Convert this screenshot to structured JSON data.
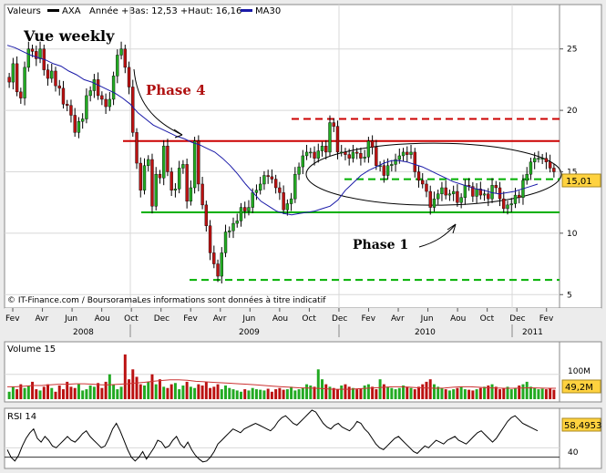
{
  "header": {
    "series_label": "Valeurs",
    "ticker": "AXA",
    "range_text": "Année +Bas: 12,53 +Haut: 16,16",
    "ma_label": "MA30"
  },
  "annotations": {
    "title": "Vue weekly",
    "phase4": "Phase 4",
    "phase1": "Phase 1",
    "copyright": "© IT-Finance.com / BoursoramaLes informations sont données à titre indicatif"
  },
  "price_badge": "15,01",
  "volume_panel": {
    "title": "Volume 15",
    "tick_100m": "100M",
    "badge": "49,2M"
  },
  "rsi_panel": {
    "title": "RSI 14",
    "tick_40": "40",
    "badge": "58,4953"
  },
  "x_axis": {
    "months": [
      "Fev",
      "Avr",
      "Jun",
      "Aou",
      "Oct",
      "Dec",
      "Fev",
      "Avr",
      "Jun",
      "Aou",
      "Oct",
      "Dec",
      "Fev",
      "Avr",
      "Jun",
      "Aou",
      "Oct",
      "Dec",
      "Fev"
    ],
    "years": [
      "2008",
      "2009",
      "2010",
      "2011"
    ]
  },
  "chart_data": [
    {
      "type": "candlestick",
      "title": "AXA",
      "y_ticks": [
        "25",
        "20",
        "15",
        "10",
        "5"
      ],
      "ylim": [
        4.5,
        27.5
      ],
      "series": [
        {
          "name": "AXA",
          "values": [
            22.3,
            23.8,
            21.5,
            21.0,
            23.5,
            25.0,
            24.8,
            24.2,
            25.0,
            23.3,
            22.6,
            23.2,
            22.0,
            21.8,
            20.5,
            20.4,
            19.6,
            18.2,
            19.1,
            19.3,
            21.2,
            21.6,
            22.5,
            21.2,
            20.9,
            20.3,
            20.9,
            22.8,
            24.5,
            25.0,
            23.5,
            21.9,
            18.2,
            15.7,
            13.5,
            15.5,
            16.0,
            12.2,
            14.8,
            14.5,
            17.1,
            15.0,
            13.5,
            13.6,
            15.3,
            15.6,
            12.6,
            13.7,
            17.5,
            14.0,
            12.3,
            10.6,
            8.4,
            7.5,
            6.5,
            8.4,
            10.1,
            10.2,
            10.8,
            11.0,
            12.1,
            11.8,
            12.1,
            13.3,
            13.5,
            14.0,
            14.7,
            14.6,
            14.4,
            13.7,
            13.3,
            11.9,
            12.4,
            12.8,
            14.8,
            15.4,
            16.3,
            16.6,
            16.6,
            16.1,
            16.7,
            17.1,
            16.6,
            19.0,
            18.7,
            16.6,
            16.6,
            16.4,
            16.1,
            16.6,
            16.5,
            16.1,
            16.2,
            17.5,
            17.0,
            15.5,
            15.5,
            14.7,
            15.5,
            15.6,
            16.0,
            16.3,
            16.6,
            16.4,
            16.6,
            15.0,
            14.3,
            14.0,
            13.4,
            12.1,
            12.8,
            13.2,
            13.7,
            13.1,
            13.2,
            13.4,
            12.5,
            12.9,
            13.9,
            13.8,
            13.0,
            13.6,
            13.1,
            13.2,
            12.8,
            13.9,
            13.7,
            12.8,
            12.0,
            12.3,
            12.4,
            13.1,
            12.9,
            14.3,
            14.8,
            15.8,
            16.1,
            16.1,
            16.1,
            15.8,
            15.3,
            15.0
          ]
        },
        {
          "name": "MA30",
          "values": [
            25.3,
            25.1,
            24.8,
            24.5,
            24.3,
            24.1,
            23.8,
            23.6,
            23.2,
            22.9,
            22.5,
            22.3,
            22.0,
            21.7,
            21.4,
            21.0,
            20.5,
            19.8,
            19.3,
            18.8,
            18.5,
            18.2,
            17.9,
            17.7,
            17.4,
            17.2,
            16.9,
            16.6,
            16.1,
            15.5,
            14.8,
            14.0,
            13.3,
            12.6,
            12.2,
            11.8,
            11.6,
            11.5,
            11.6,
            11.7,
            11.8,
            12.0,
            12.2,
            12.7,
            13.5,
            14.1,
            14.7,
            15.1,
            15.4,
            15.7,
            15.9,
            15.9,
            15.8,
            15.6,
            15.4,
            15.1,
            14.8,
            14.5,
            14.2,
            14.0,
            13.8,
            13.6,
            13.5,
            13.3,
            13.2,
            13.3,
            13.4,
            13.6,
            13.8,
            14.0
          ]
        }
      ],
      "annotations": [
        {
          "label": "resistance",
          "value": 17.5,
          "color": "#c00000"
        },
        {
          "label": "support",
          "value": 11.7,
          "color": "#00b000"
        },
        {
          "label": "upper dashed",
          "value": 19.3,
          "color": "#c00000"
        },
        {
          "label": "mid dashed",
          "value": 14.4,
          "color": "#00b000"
        },
        {
          "label": "low dashed",
          "value": 6.2,
          "color": "#00b000"
        }
      ]
    },
    {
      "type": "bar",
      "title": "Volume 15",
      "unit": "M",
      "ylim": [
        0,
        220
      ],
      "values": [
        30,
        50,
        40,
        60,
        45,
        55,
        70,
        40,
        35,
        50,
        60,
        45,
        30,
        55,
        40,
        70,
        50,
        45,
        60,
        35,
        40,
        55,
        50,
        65,
        45,
        70,
        100,
        60,
        40,
        50,
        180,
        80,
        120,
        90,
        60,
        55,
        70,
        100,
        60,
        80,
        50,
        45,
        60,
        65,
        40,
        55,
        70,
        50,
        45,
        60,
        55,
        70,
        45,
        50,
        60,
        40,
        55,
        45,
        40,
        35,
        30,
        40,
        35,
        45,
        40,
        38,
        35,
        42,
        30,
        40,
        45,
        38,
        40,
        50,
        35,
        40,
        45,
        60,
        55,
        50,
        120,
        80,
        60,
        50,
        45,
        40,
        55,
        60,
        50,
        45,
        40,
        42,
        55,
        60,
        50,
        40,
        80,
        60,
        50,
        45,
        40,
        45,
        55,
        50,
        45,
        40,
        50,
        60,
        70,
        80,
        60,
        50,
        45,
        40,
        35,
        40,
        45,
        50,
        40,
        38,
        35,
        40,
        45,
        50,
        55,
        60,
        50,
        40,
        45,
        50,
        40,
        45,
        55,
        60,
        70,
        50,
        45,
        40,
        42,
        40,
        45,
        38
      ],
      "ma_values": [
        50,
        50,
        52,
        55,
        55,
        58,
        60,
        60,
        62,
        62,
        60,
        58,
        58,
        60,
        62,
        65,
        68,
        72,
        75,
        78,
        78,
        76,
        72,
        70,
        68,
        66,
        64,
        62,
        60,
        58,
        55,
        52,
        50,
        48,
        46,
        45,
        44,
        42,
        40,
        40,
        40,
        42,
        44,
        46,
        48,
        50,
        50,
        48,
        46,
        45,
        44,
        45,
        48,
        50,
        50,
        48,
        46,
        45,
        44,
        44,
        45,
        46,
        45,
        44,
        44
      ]
    },
    {
      "type": "line",
      "title": "RSI 14",
      "ylim": [
        20,
        80
      ],
      "values": [
        38,
        30,
        26,
        32,
        42,
        50,
        56,
        60,
        50,
        46,
        52,
        48,
        42,
        40,
        44,
        48,
        52,
        48,
        46,
        50,
        55,
        58,
        52,
        48,
        44,
        40,
        42,
        50,
        60,
        66,
        58,
        48,
        38,
        30,
        26,
        30,
        36,
        28,
        34,
        40,
        48,
        46,
        40,
        42,
        48,
        52,
        44,
        40,
        46,
        38,
        32,
        28,
        25,
        26,
        30,
        36,
        44,
        48,
        52,
        56,
        60,
        58,
        56,
        60,
        62,
        64,
        66,
        64,
        62,
        60,
        58,
        62,
        68,
        72,
        74,
        70,
        66,
        64,
        68,
        72,
        76,
        80,
        78,
        72,
        66,
        62,
        60,
        64,
        66,
        62,
        60,
        58,
        62,
        68,
        66,
        60,
        56,
        50,
        44,
        40,
        38,
        42,
        46,
        50,
        52,
        48,
        44,
        40,
        36,
        34,
        38,
        42,
        40,
        44,
        48,
        46,
        44,
        48,
        50,
        52,
        48,
        46,
        44,
        48,
        52,
        56,
        58,
        54,
        50,
        46,
        50,
        56,
        62,
        68,
        72,
        74,
        70,
        66,
        64,
        62,
        60,
        58
      ]
    }
  ]
}
